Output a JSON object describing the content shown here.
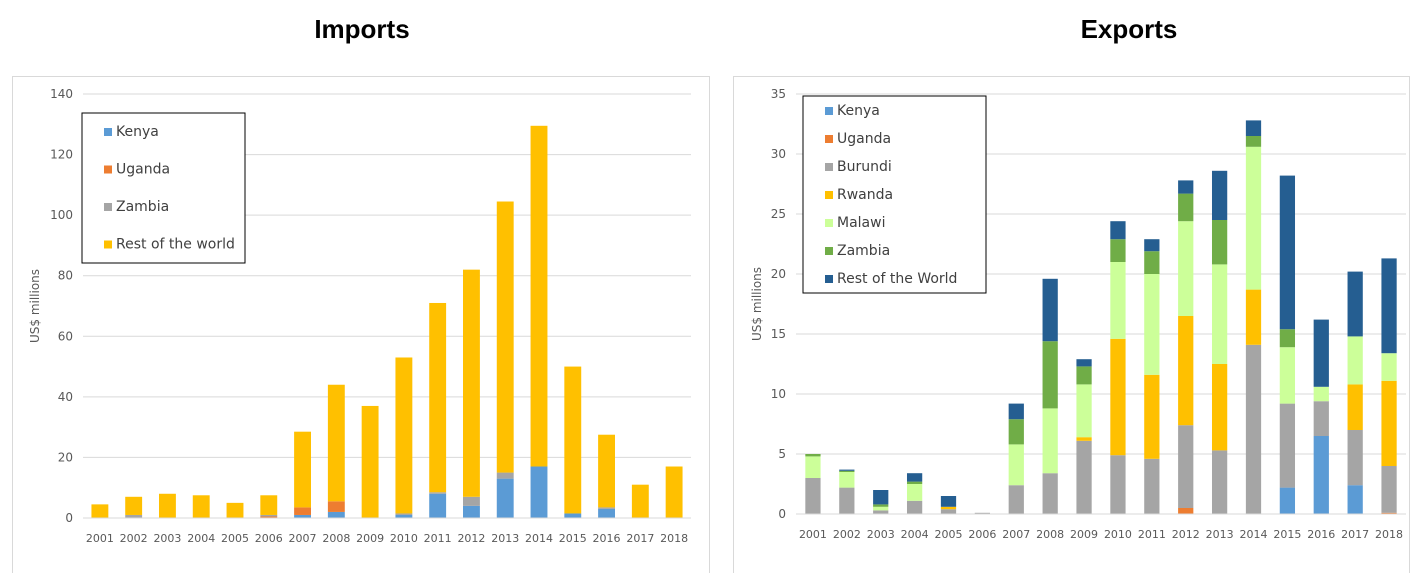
{
  "chart_data": [
    {
      "type": "bar",
      "stacked": true,
      "title": "Imports",
      "xlabel": "",
      "ylabel": "US$ millions",
      "ylim": [
        0,
        140
      ],
      "yticks": [
        0,
        20,
        40,
        60,
        80,
        100,
        120,
        140
      ],
      "grid": true,
      "legend_position": "top-left",
      "categories": [
        "2001",
        "2002",
        "2003",
        "2004",
        "2005",
        "2006",
        "2007",
        "2008",
        "2009",
        "2010",
        "2011",
        "2012",
        "2013",
        "2014",
        "2015",
        "2016",
        "2017",
        "2018"
      ],
      "series": [
        {
          "name": "Kenya",
          "color": "#5b9bd5",
          "values": [
            0,
            0,
            0,
            0,
            0,
            0,
            1,
            2,
            0,
            1,
            8,
            4,
            13,
            17,
            1.5,
            3,
            0,
            0
          ]
        },
        {
          "name": "Uganda",
          "color": "#ed7d31",
          "values": [
            0,
            0,
            0,
            0,
            0,
            0.5,
            2.5,
            3.5,
            0,
            0,
            0,
            0,
            0,
            0,
            0,
            0,
            0,
            0
          ]
        },
        {
          "name": "Zambia",
          "color": "#a5a5a5",
          "values": [
            0,
            1,
            0,
            0,
            0,
            0.5,
            0,
            0,
            0,
            0.5,
            0.5,
            3,
            2,
            0,
            0,
            0.5,
            0,
            0
          ]
        },
        {
          "name": "Rest of the world",
          "color": "#ffc000",
          "values": [
            4.5,
            6,
            8,
            7.5,
            5,
            6.5,
            25,
            38.5,
            37,
            51.5,
            62.5,
            75,
            89.5,
            112.5,
            48.5,
            24,
            11,
            17
          ]
        }
      ]
    },
    {
      "type": "bar",
      "stacked": true,
      "title": "Exports",
      "xlabel": "",
      "ylabel": "US$ millions",
      "ylim": [
        0,
        35
      ],
      "yticks": [
        0,
        5,
        10,
        15,
        20,
        25,
        30,
        35
      ],
      "grid": true,
      "legend_position": "top-left",
      "categories": [
        "2001",
        "2002",
        "2003",
        "2004",
        "2005",
        "2006",
        "2007",
        "2008",
        "2009",
        "2010",
        "2011",
        "2012",
        "2013",
        "2014",
        "2015",
        "2016",
        "2017",
        "2018"
      ],
      "series": [
        {
          "name": "Kenya",
          "color": "#5b9bd5",
          "values": [
            0,
            0,
            0,
            0,
            0,
            0,
            0,
            0,
            0,
            0,
            0,
            0,
            0,
            0,
            2.2,
            6.5,
            2.4,
            0
          ]
        },
        {
          "name": "Uganda",
          "color": "#ed7d31",
          "values": [
            0,
            0,
            0,
            0,
            0,
            0,
            0,
            0,
            0,
            0,
            0,
            0.5,
            0,
            0,
            0,
            0,
            0,
            0.1
          ]
        },
        {
          "name": "Burundi",
          "color": "#a5a5a5",
          "values": [
            3,
            2.2,
            0.3,
            1.1,
            0.4,
            0.1,
            2.4,
            3.4,
            6.1,
            4.9,
            4.6,
            6.9,
            5.3,
            14.1,
            7,
            2.9,
            4.6,
            3.9
          ]
        },
        {
          "name": "Rwanda",
          "color": "#ffc000",
          "values": [
            0,
            0,
            0,
            0,
            0.2,
            0,
            0,
            0,
            0.3,
            9.7,
            7,
            9.1,
            7.2,
            4.6,
            0,
            0,
            3.8,
            7.1
          ]
        },
        {
          "name": "Malawi",
          "color": "#ccff99",
          "values": [
            1.8,
            1.3,
            0.3,
            1.4,
            0,
            0,
            3.4,
            5.4,
            4.4,
            6.4,
            8.4,
            7.9,
            8.3,
            11.9,
            4.7,
            1.2,
            4,
            2.3
          ]
        },
        {
          "name": "Zambia",
          "color": "#70ad47",
          "values": [
            0.2,
            0.1,
            0.2,
            0.2,
            0,
            0,
            2.1,
            5.6,
            1.5,
            1.9,
            1.9,
            2.3,
            3.7,
            0.9,
            1.5,
            0,
            0,
            0
          ]
        },
        {
          "name": "Rest of the World",
          "color": "#255e91",
          "values": [
            0,
            0.1,
            1.2,
            0.7,
            0.9,
            0,
            1.3,
            5.2,
            0.6,
            1.5,
            1,
            1.1,
            4.1,
            1.3,
            12.8,
            5.6,
            5.4,
            7.9
          ]
        }
      ]
    }
  ]
}
